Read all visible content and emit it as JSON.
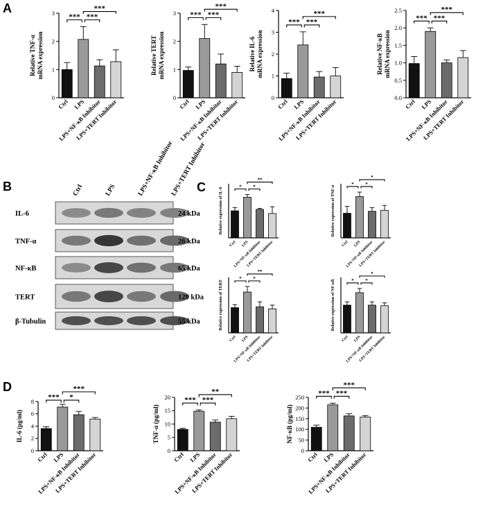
{
  "panel_letters": {
    "a": "A",
    "b": "B",
    "c": "C",
    "d": "D"
  },
  "western_blot": {
    "lanes": [
      "Ctrl",
      "LPS",
      "LPS+NF-κB Inhibitor",
      "LPS+TERT Inhibitor"
    ],
    "rows": [
      {
        "protein": "IL-6",
        "kda": "24 kDa",
        "intensity": [
          0.45,
          0.55,
          0.5,
          0.5
        ]
      },
      {
        "protein": "TNF-α",
        "kda": "26 kDa",
        "intensity": [
          0.55,
          0.95,
          0.6,
          0.65
        ]
      },
      {
        "protein": "NF-κB",
        "kda": "65 kDa",
        "intensity": [
          0.45,
          0.85,
          0.6,
          0.55
        ]
      },
      {
        "protein": "TERT",
        "kda": "120 kDa",
        "intensity": [
          0.55,
          0.85,
          0.55,
          0.65
        ]
      },
      {
        "protein": "β-Tubulin",
        "kda": "55 kDa",
        "intensity": [
          0.8,
          0.8,
          0.8,
          0.8
        ]
      }
    ]
  },
  "chart_data": [
    {
      "type": "bar",
      "panel": "A",
      "categories": [
        "Ctrl",
        "LPS",
        "LPS+NF-κB Inhibitor",
        "LPS+TERT Inhibitor"
      ],
      "values": [
        1.0,
        2.07,
        1.13,
        1.28
      ],
      "errors": [
        0.25,
        0.45,
        0.22,
        0.42
      ],
      "colors": [
        "#111111",
        "#9a9a9a",
        "#6c6c6c",
        "#d4d4d4"
      ],
      "ylabel": [
        "Relative TNF-α",
        "mRNA expression"
      ],
      "ylim": [
        0,
        3
      ],
      "yticks": [
        0,
        1,
        2,
        3
      ],
      "sig": [
        {
          "from": 0,
          "to": 1,
          "label": "***"
        },
        {
          "from": 1,
          "to": 2,
          "label": "***"
        },
        {
          "from": 1,
          "to": 3,
          "label": "***"
        }
      ]
    },
    {
      "type": "bar",
      "panel": "A",
      "categories": [
        "Ctrl",
        "LPS",
        "LPS+NF-κB Inhibitor",
        "LPS+TERT Inhibitor"
      ],
      "values": [
        0.97,
        2.1,
        1.2,
        0.9
      ],
      "errors": [
        0.12,
        0.5,
        0.35,
        0.22
      ],
      "colors": [
        "#111111",
        "#9a9a9a",
        "#6c6c6c",
        "#d4d4d4"
      ],
      "ylabel": [
        "Relative TERT",
        "mRNA expression"
      ],
      "ylim": [
        0,
        3
      ],
      "yticks": [
        0,
        1,
        2,
        3
      ],
      "sig": [
        {
          "from": 0,
          "to": 1,
          "label": "***"
        },
        {
          "from": 1,
          "to": 2,
          "label": "***"
        },
        {
          "from": 1,
          "to": 3,
          "label": "***"
        }
      ]
    },
    {
      "type": "bar",
      "panel": "A",
      "categories": [
        "Ctrl",
        "LPS",
        "LPS+NF-κB Inhibitor",
        "LPS+TERT Inhibitor"
      ],
      "values": [
        0.88,
        2.42,
        0.95,
        1.0
      ],
      "errors": [
        0.25,
        0.6,
        0.25,
        0.38
      ],
      "colors": [
        "#111111",
        "#9a9a9a",
        "#6c6c6c",
        "#d4d4d4"
      ],
      "ylabel": [
        "Relative IL-6",
        "mRNA expression"
      ],
      "ylim": [
        0,
        4
      ],
      "yticks": [
        0,
        1,
        2,
        3,
        4
      ],
      "sig": [
        {
          "from": 0,
          "to": 1,
          "label": "***"
        },
        {
          "from": 1,
          "to": 2,
          "label": "***"
        },
        {
          "from": 1,
          "to": 3,
          "label": "***"
        }
      ]
    },
    {
      "type": "bar",
      "panel": "A",
      "categories": [
        "Ctrl",
        "LPS",
        "LPS+NF-κB Inhibitor",
        "LPS+TERT Inhibitor"
      ],
      "values": [
        0.98,
        1.9,
        1.0,
        1.15
      ],
      "errors": [
        0.2,
        0.1,
        0.08,
        0.2
      ],
      "colors": [
        "#111111",
        "#9a9a9a",
        "#6c6c6c",
        "#d4d4d4"
      ],
      "ylabel": [
        "Relative NF-κB",
        "mRNA expression"
      ],
      "ylim": [
        0,
        2.5
      ],
      "yticks": [
        0.0,
        0.5,
        1.0,
        1.5,
        2.0,
        2.5
      ],
      "sig": [
        {
          "from": 0,
          "to": 1,
          "label": "***"
        },
        {
          "from": 1,
          "to": 2,
          "label": "***"
        },
        {
          "from": 1,
          "to": 3,
          "label": "***"
        }
      ]
    },
    {
      "type": "bar",
      "panel": "C",
      "categories": [
        "Ctrl",
        "LPS",
        "LPS+NF-κB Inhibitor",
        "LPS+TERT Inhibitor"
      ],
      "values": [
        1.0,
        1.5,
        1.05,
        0.9
      ],
      "errors": [
        0.12,
        0.1,
        0.04,
        0.25
      ],
      "colors": [
        "#111111",
        "#9a9a9a",
        "#6c6c6c",
        "#d4d4d4"
      ],
      "ylabel": [
        "Relative expression of IL-6"
      ],
      "ylim": [
        0,
        2
      ],
      "sig": [
        {
          "from": 0,
          "to": 1,
          "label": "*"
        },
        {
          "from": 1,
          "to": 2,
          "label": "*"
        },
        {
          "from": 1,
          "to": 3,
          "label": "**"
        }
      ]
    },
    {
      "type": "bar",
      "panel": "C",
      "categories": [
        "Ctrl",
        "LPS",
        "LPS+NF-κB Inhibitor",
        "LPS+TERT Inhibitor"
      ],
      "values": [
        1.0,
        1.68,
        1.08,
        1.12
      ],
      "errors": [
        0.28,
        0.18,
        0.15,
        0.2
      ],
      "colors": [
        "#111111",
        "#9a9a9a",
        "#6c6c6c",
        "#d4d4d4"
      ],
      "ylabel": [
        "Relative expression of TNF-α"
      ],
      "ylim": [
        0,
        2.2
      ],
      "sig": [
        {
          "from": 0,
          "to": 1,
          "label": "*"
        },
        {
          "from": 1,
          "to": 2,
          "label": "*"
        },
        {
          "from": 1,
          "to": 3,
          "label": "*"
        }
      ]
    },
    {
      "type": "bar",
      "panel": "C",
      "categories": [
        "Ctrl",
        "LPS",
        "LPS+NF-κB Inhibitor",
        "LPS+TERT Inhibitor"
      ],
      "values": [
        1.0,
        1.62,
        1.03,
        0.95
      ],
      "errors": [
        0.12,
        0.22,
        0.2,
        0.15
      ],
      "colors": [
        "#111111",
        "#9a9a9a",
        "#6c6c6c",
        "#d4d4d4"
      ],
      "ylabel": [
        "Relative expression of TERT"
      ],
      "ylim": [
        0,
        2.2
      ],
      "sig": [
        {
          "from": 0,
          "to": 1,
          "label": "*"
        },
        {
          "from": 1,
          "to": 2,
          "label": "*"
        },
        {
          "from": 1,
          "to": 3,
          "label": "**"
        }
      ]
    },
    {
      "type": "bar",
      "panel": "C",
      "categories": [
        "Ctrl",
        "LPS",
        "LPS+NF-κB Inhibitor",
        "LPS+TERT Inhibitor"
      ],
      "values": [
        1.0,
        1.45,
        1.0,
        0.98
      ],
      "errors": [
        0.12,
        0.15,
        0.12,
        0.1
      ],
      "colors": [
        "#111111",
        "#9a9a9a",
        "#6c6c6c",
        "#d4d4d4"
      ],
      "ylabel": [
        "Relative expression of NF-κB"
      ],
      "ylim": [
        0,
        2
      ],
      "sig": [
        {
          "from": 0,
          "to": 1,
          "label": "*"
        },
        {
          "from": 1,
          "to": 2,
          "label": "*"
        },
        {
          "from": 1,
          "to": 3,
          "label": "*"
        }
      ]
    },
    {
      "type": "bar",
      "panel": "D",
      "categories": [
        "Ctrl",
        "LPS",
        "LPS+NF-κB Inhibitor",
        "LPS+TERT Inhibitor"
      ],
      "values": [
        3.6,
        7.1,
        5.85,
        5.15
      ],
      "errors": [
        0.3,
        0.45,
        0.55,
        0.25
      ],
      "colors": [
        "#111111",
        "#9a9a9a",
        "#6c6c6c",
        "#d4d4d4"
      ],
      "ylabel": [
        "IL-6 (pg/ml)"
      ],
      "ylim": [
        0,
        8
      ],
      "yticks": [
        0,
        2,
        4,
        6,
        8
      ],
      "sig": [
        {
          "from": 0,
          "to": 1,
          "label": "***"
        },
        {
          "from": 1,
          "to": 2,
          "label": "*"
        },
        {
          "from": 1,
          "to": 3,
          "label": "***"
        }
      ]
    },
    {
      "type": "bar",
      "panel": "D",
      "categories": [
        "Ctrl",
        "LPS",
        "LPS+NF-κB Inhibitor",
        "LPS+TERT Inhibitor"
      ],
      "values": [
        8.0,
        14.8,
        10.7,
        12.0
      ],
      "errors": [
        0.4,
        0.5,
        0.8,
        0.9
      ],
      "colors": [
        "#111111",
        "#9a9a9a",
        "#6c6c6c",
        "#d4d4d4"
      ],
      "ylabel": [
        "TNF-α (pg/ml)"
      ],
      "ylim": [
        0,
        20
      ],
      "yticks": [
        0,
        5,
        10,
        15,
        20
      ],
      "sig": [
        {
          "from": 0,
          "to": 1,
          "label": "***"
        },
        {
          "from": 1,
          "to": 2,
          "label": "***"
        },
        {
          "from": 1,
          "to": 3,
          "label": "**"
        }
      ]
    },
    {
      "type": "bar",
      "panel": "D",
      "categories": [
        "Ctrl",
        "LPS",
        "LPS+NF-κB Inhibitor",
        "LPS+TERT Inhibitor"
      ],
      "values": [
        110,
        215,
        163,
        158
      ],
      "errors": [
        10,
        8,
        10,
        6
      ],
      "colors": [
        "#111111",
        "#9a9a9a",
        "#6c6c6c",
        "#d4d4d4"
      ],
      "ylabel": [
        "NF-κB (pg/ml)"
      ],
      "ylim": [
        0,
        250
      ],
      "yticks": [
        0,
        50,
        100,
        150,
        200,
        250
      ],
      "sig": [
        {
          "from": 0,
          "to": 1,
          "label": "***"
        },
        {
          "from": 1,
          "to": 2,
          "label": "***"
        },
        {
          "from": 1,
          "to": 3,
          "label": "***"
        }
      ]
    }
  ]
}
